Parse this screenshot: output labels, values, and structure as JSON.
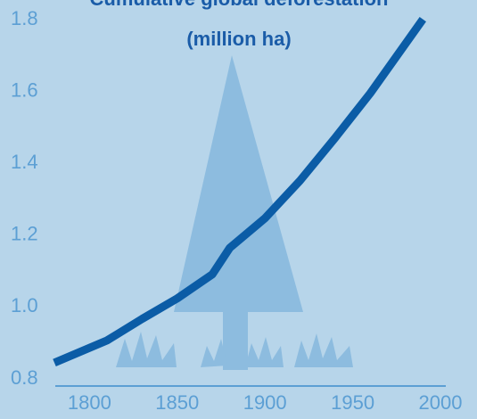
{
  "chart_data": {
    "type": "line",
    "title": "Cumulative global deforestation",
    "subtitle": "(million ha)",
    "x": [
      1780,
      1810,
      1830,
      1850,
      1870,
      1880,
      1900,
      1920,
      1940,
      1960,
      1990
    ],
    "series": [
      {
        "color": "#0b5ca6",
        "values": [
          0.845,
          0.907,
          0.967,
          1.024,
          1.091,
          1.165,
          1.247,
          1.352,
          1.471,
          1.595,
          1.801
        ]
      }
    ],
    "xlim": [
      1780,
      2000
    ],
    "xticks": [
      1800,
      1850,
      1900,
      1950,
      2000
    ],
    "ylim": [
      0.8,
      1.8
    ],
    "yticks": [
      0.8,
      {
        "value": 1,
        "label": "1.0"
      },
      1.2,
      1.4,
      1.6,
      1.8
    ]
  }
}
